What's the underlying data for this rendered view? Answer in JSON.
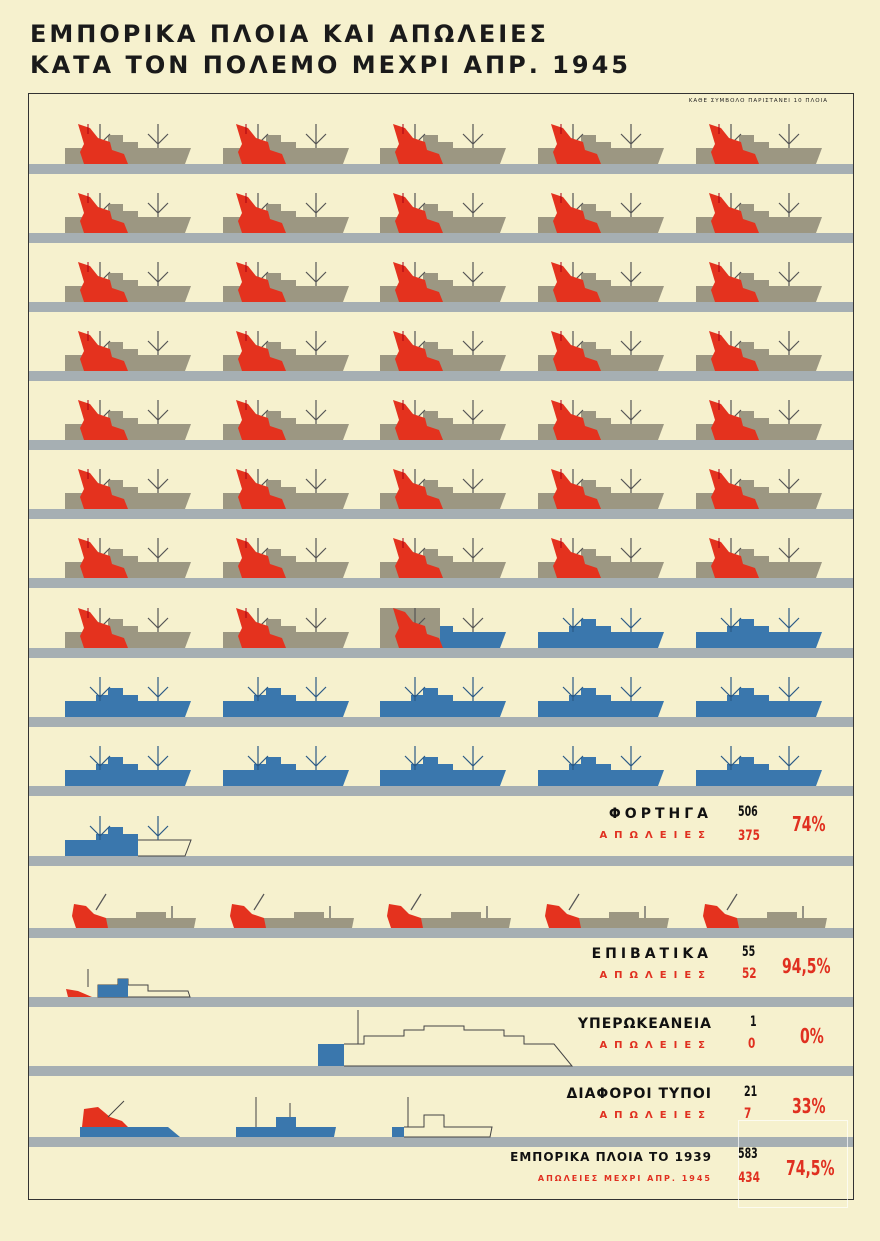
{
  "title": {
    "line1": "ΕΜΠΟΡΙΚΑ ΠΛΟΙΑ ΚΑΙ ΑΠΩΛΕΙΕΣ",
    "line2": "ΚΑΤΑ ΤΟΝ ΠΟΛΕΜΟ ΜΕΧΡΙ ΑΠΡ. 1945"
  },
  "legend_note": "ΚΑΘΕ ΣΥΜΒΟΛΟ ΠΑΡΙΣΤΑΝΕΙ 10 ΠΛΟΙΑ",
  "colors": {
    "lost": "#e4321e",
    "surviving": "#3a77ad",
    "ship_grey": "#9c9782",
    "sea": "#a6afb3",
    "text_red": "#e03020"
  },
  "chart_data": {
    "type": "pictogram",
    "title": "ΕΜΠΟΡΙΚΑ ΠΛΟΙΑ ΚΑΙ ΑΠΩΛΕΙΕΣ ΚΑΤΑ ΤΟΝ ΠΟΛΕΜΟ ΜΕΧΡΙ ΑΠΡ. 1945",
    "units_per_symbol": 10,
    "categories": [
      {
        "label": "ΦΟΡΤΗΓΑ",
        "loss_label": "ΑΠΩΛΕΙΕΣ",
        "total": 506,
        "lost": 375,
        "percent": "74%",
        "symbols_total": 50.6,
        "symbols_lost": 37.5,
        "ship": "cargo"
      },
      {
        "label": "ΕΠΙΒΑΤΙΚΑ",
        "loss_label": "ΑΠΩΛΕΙΕΣ",
        "total": 55,
        "lost": 52,
        "percent": "94,5%",
        "symbols_total": 5.5,
        "symbols_lost": 5.2,
        "ship": "passenger"
      },
      {
        "label": "ΥΠΕΡΩΚΕΑΝΕΙΑ",
        "loss_label": "ΑΠΩΛΕΙΕΣ",
        "total": 1,
        "lost": 0,
        "percent": "0%",
        "symbols_total": 0.1,
        "symbols_lost": 0,
        "ship": "liner"
      },
      {
        "label": "ΔΙΑΦΟΡΟΙ ΤΥΠΟΙ",
        "loss_label": "ΑΠΩΛΕΙΕΣ",
        "total": 21,
        "lost": 7,
        "percent": "33%",
        "symbols_total": 2.1,
        "symbols_lost": 0.7,
        "ship": "misc"
      }
    ],
    "summary": {
      "label": "ΕΜΠΟΡΙΚΑ ΠΛΟΙΑ ΤΟ 1939",
      "loss_label": "ΑΠΩΛΕΙΕΣ ΜΕΧΡΙ ΑΠΡ. 1945",
      "total": 583,
      "lost": 434,
      "percent": "74,5%"
    }
  }
}
